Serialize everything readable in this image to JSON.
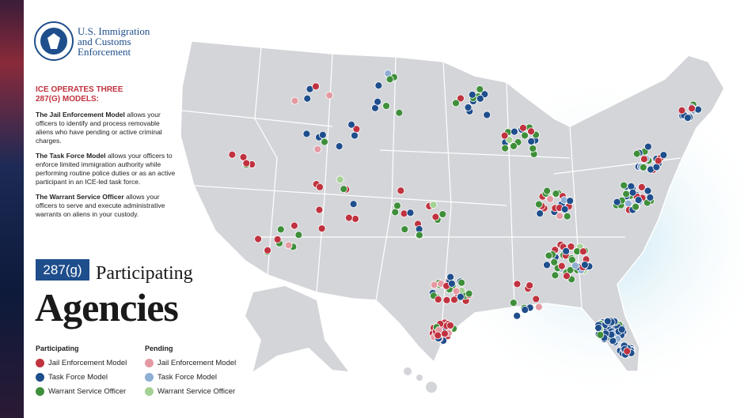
{
  "logo": {
    "lines": [
      "U.S. Immigration",
      "and Customs",
      "Enforcement"
    ]
  },
  "intro": {
    "heading": "ICE OPERATES THREE 287(G) MODELS:",
    "models": [
      {
        "name": "The Jail Enforcement Model",
        "text": "allows your officers to identify and process removable aliens who have pending or active criminal charges."
      },
      {
        "name": "The Task Force Model",
        "text": "allows your officers to enforce limited immigration authority while performing routine police duties or as an active participant in an ICE-led task force."
      },
      {
        "name": "The Warrant Service Officer",
        "text": "allows your officers to serve and execute administrative warrants on aliens in your custody."
      }
    ]
  },
  "title": {
    "badge": "287(g)",
    "line1": "Participating",
    "line2": "Agencies"
  },
  "legend": {
    "groups": [
      {
        "title": "Participating",
        "items": [
          {
            "label": "Jail Enforcement Model",
            "color": "#c0323f"
          },
          {
            "label": "Task Force Model",
            "color": "#1f4e8c"
          },
          {
            "label": "Warrant Service Officer",
            "color": "#3f8f3a"
          }
        ]
      },
      {
        "title": "Pending",
        "items": [
          {
            "label": "Jail Enforcement Model",
            "color": "#e59aa3"
          },
          {
            "label": "Task Force Model",
            "color": "#8eaed3"
          },
          {
            "label": "Warrant Service Officer",
            "color": "#a3d193"
          }
        ]
      }
    ]
  }
}
